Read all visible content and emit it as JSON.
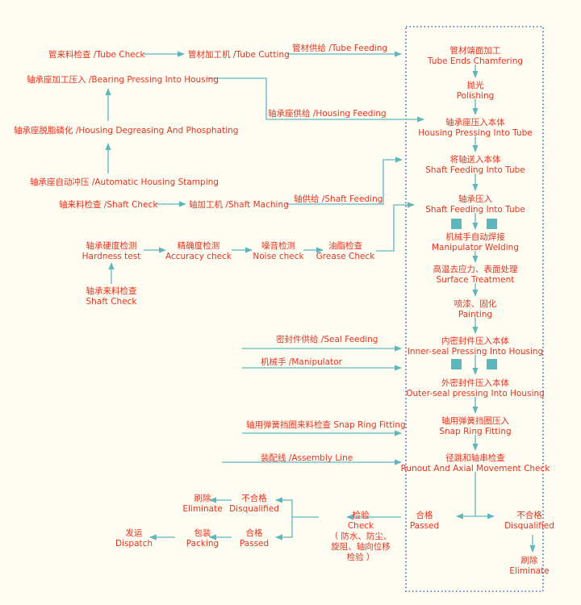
{
  "colors": {
    "text": "#e8321e",
    "line": "#5cb8bd",
    "box_border": "#3b66c4",
    "background": "#fffdf2"
  },
  "left": {
    "tube_check": "管来料检查 /Tube Check",
    "tube_cutting": "管材加工机 /Tube Cutting",
    "tube_feeding": "管材供给 /Tube Feeding",
    "bearing_pressing": "轴承座加工压入 /Bearing Pressing Into Housing",
    "housing_feeding": "轴承座供给 /Housing Feeding",
    "housing_degreasing": "轴承座脱脂磷化 /Housing Degreasing And Phosphating",
    "housing_stamping": "轴承座自动冲压 /Automatic Housing Stamping",
    "shaft_check": "轴来料检查 /Shaft Check",
    "shaft_maching": "轴加工机 /Shaft Maching",
    "shaft_feeding": "轴供给 /Shaft Feeding",
    "hardness": {
      "cn": "轴承硬度检测",
      "en": "Hardness test"
    },
    "accuracy": {
      "cn": "精确度检测",
      "en": "Accuracy check"
    },
    "noise": {
      "cn": "噪音检测",
      "en": "Noise check"
    },
    "grease": {
      "cn": "油脂检查",
      "en": "Grease Check"
    },
    "bearing_incoming": {
      "cn": "轴承来料检查",
      "en": "Shaft Check"
    },
    "seal_feeding": "密封件供给 /Seal Feeding",
    "manipulator": "机械手 /Manipulator",
    "snap_ring_check": "轴用弹簧挡圈来料检查 Snap Ring Fitting",
    "assembly_line": "装配线 /Assembly Line"
  },
  "main": [
    {
      "cn": "管材端面加工",
      "en": "Tube Ends Chamfering"
    },
    {
      "cn": "抛光",
      "en": "Polishing"
    },
    {
      "cn": "轴承座压入本体",
      "en": "Housing Pressing Into Tube"
    },
    {
      "cn": "将轴送入本体",
      "en": "Shaft Feeding Into Tube"
    },
    {
      "cn": "轴承压入",
      "en": "Shaft Feeding Into Tube"
    },
    {
      "cn": "机械手自动焊接",
      "en": "Manipulator Welding"
    },
    {
      "cn": "高温去应力、表面处理",
      "en": "Surface Treatment"
    },
    {
      "cn": "喷漆、固化",
      "en": "Painting"
    },
    {
      "cn": "内密封件压入本体",
      "en": "Inner-seal Pressing Into Housing"
    },
    {
      "cn": "外密封件压入本体",
      "en": "Outer-seal pressing Into Housing"
    },
    {
      "cn": "轴用弹簧挡圈压入",
      "en": "Snap Ring Fitting"
    },
    {
      "cn": "径跳和轴串检查",
      "en": "Runout And Axial Movement Check"
    }
  ],
  "result": {
    "passed": {
      "cn": "合格",
      "en": "Passed"
    },
    "disqualified": {
      "cn": "不合格",
      "en": "Disqualified"
    },
    "eliminate": {
      "cn": "刷除",
      "en": "Eliminate"
    }
  },
  "bottom": {
    "check": {
      "cn": "检验",
      "en": "Check",
      "note1": "（ 防水、防尘、",
      "note2": "旋阻、轴向位移",
      "note3": "检验 ）"
    },
    "disqualified": {
      "cn": "不合格",
      "en": "Disqualified"
    },
    "passed": {
      "cn": "合格",
      "en": "Passed"
    },
    "eliminate": {
      "cn": "刷除",
      "en": "Eliminate"
    },
    "packing": {
      "cn": "包装",
      "en": "Packing"
    },
    "dispatch": {
      "cn": "发运",
      "en": "Dispatch"
    }
  }
}
